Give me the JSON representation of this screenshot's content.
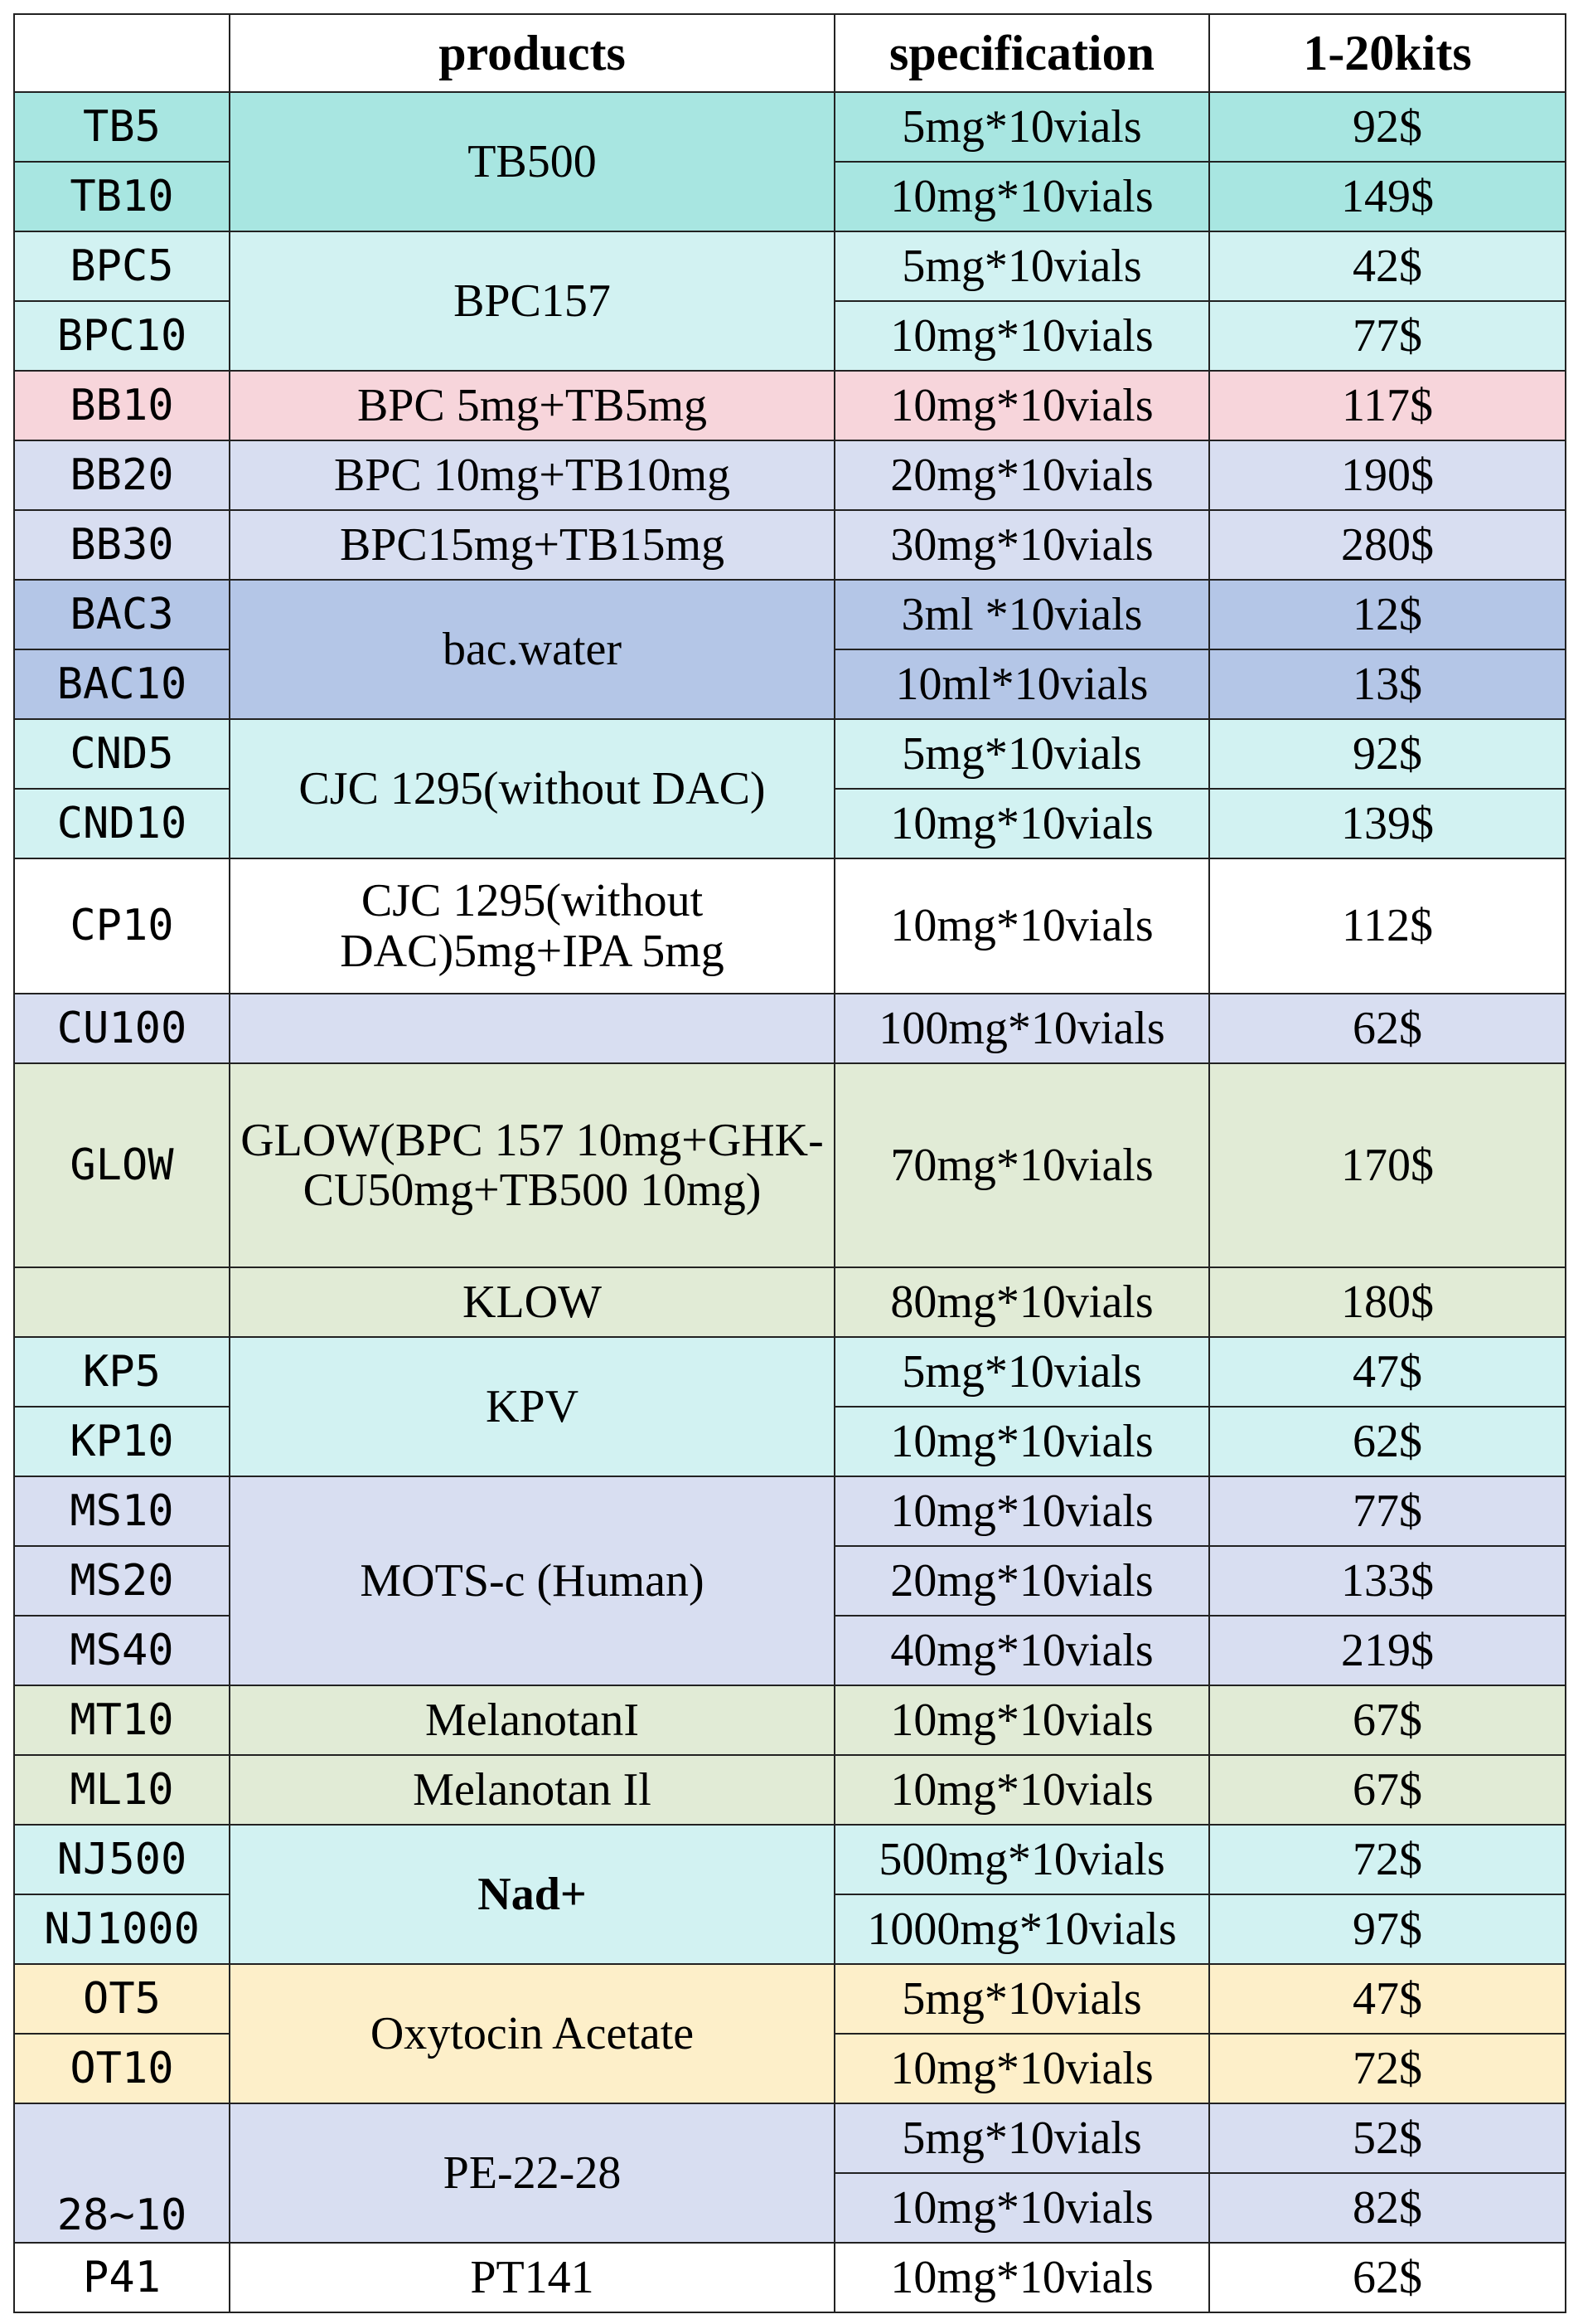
{
  "headers": {
    "code": "",
    "products": "products",
    "specification": "specification",
    "price": "1-20kits"
  },
  "rows": [
    {
      "code": "TB5",
      "product": "TB500",
      "spec": "5mg*10vials",
      "price": "92$"
    },
    {
      "code": "TB10",
      "spec": "10mg*10vials",
      "price": "149$"
    },
    {
      "code": "BPC5",
      "product": "BPC157",
      "spec": "5mg*10vials",
      "price": "42$"
    },
    {
      "code": "BPC10",
      "spec": "10mg*10vials",
      "price": "77$"
    },
    {
      "code": "BB10",
      "product": "BPC 5mg+TB5mg",
      "spec": "10mg*10vials",
      "price": "117$"
    },
    {
      "code": "BB20",
      "product": "BPC 10mg+TB10mg",
      "spec": "20mg*10vials",
      "price": "190$"
    },
    {
      "code": "BB30",
      "product": "BPC15mg+TB15mg",
      "spec": "30mg*10vials",
      "price": "280$"
    },
    {
      "code": "BAC3",
      "product": "bac.water",
      "spec": "3ml *10vials",
      "price": "12$"
    },
    {
      "code": "BAC10",
      "spec": "10ml*10vials",
      "price": "13$"
    },
    {
      "code": "CND5",
      "product": "CJC 1295(without DAC)",
      "spec": "5mg*10vials",
      "price": "92$"
    },
    {
      "code": "CND10",
      "spec": "10mg*10vials",
      "price": "139$"
    },
    {
      "code": "CP10",
      "product": "CJC 1295(without DAC)5mg+IPA 5mg",
      "spec": "10mg*10vials",
      "price": "112$"
    },
    {
      "code": "CU100",
      "product": "",
      "spec": "100mg*10vials",
      "price": "62$"
    },
    {
      "code": "GLOW",
      "product": "GLOW(BPC 157 10mg+GHK-CU50mg+TB500 10mg)",
      "spec": "70mg*10vials",
      "price": "170$"
    },
    {
      "code": "",
      "product": "KLOW",
      "spec": "80mg*10vials",
      "price": "180$"
    },
    {
      "code": "KP5",
      "product": "KPV",
      "spec": "5mg*10vials",
      "price": "47$"
    },
    {
      "code": "KP10",
      "spec": "10mg*10vials",
      "price": "62$"
    },
    {
      "code": "MS10",
      "product": "MOTS-c (Human)",
      "spec": "10mg*10vials",
      "price": "77$"
    },
    {
      "code": "MS20",
      "spec": "20mg*10vials",
      "price": "133$"
    },
    {
      "code": "MS40",
      "spec": "40mg*10vials",
      "price": "219$"
    },
    {
      "code": "MT10",
      "product": "MelanotanI",
      "spec": "10mg*10vials",
      "price": "67$"
    },
    {
      "code": "ML10",
      "product": "Melanotan Il",
      "spec": "10mg*10vials",
      "price": "67$"
    },
    {
      "code": "NJ500",
      "product": "Nad+",
      "spec": "500mg*10vials",
      "price": "72$"
    },
    {
      "code": "NJ1000",
      "spec": "1000mg*10vials",
      "price": "97$"
    },
    {
      "code": "OT5",
      "product": "Oxytocin Acetate",
      "spec": "5mg*10vials",
      "price": "47$"
    },
    {
      "code": "OT10",
      "spec": "10mg*10vials",
      "price": "72$"
    },
    {
      "code": "28~10",
      "product": "PE-22-28",
      "spec": "5mg*10vials",
      "price": "52$"
    },
    {
      "spec": "10mg*10vials",
      "price": "82$"
    },
    {
      "code": "P41",
      "product": "PT141",
      "spec": "10mg*10vials",
      "price": "62$"
    }
  ],
  "colors": {
    "teal": "#a8e6e1",
    "cyan": "#d2f2f2",
    "pink": "#f7d5db",
    "lavender": "#d8def1",
    "blue": "#b4c6e7",
    "white": "#ffffff",
    "sage": "#e1ebd6",
    "cream": "#fdefc9"
  }
}
